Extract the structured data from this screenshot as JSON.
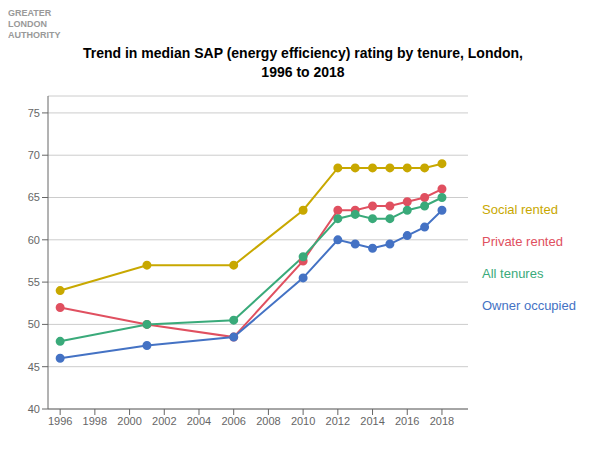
{
  "chart_data": {
    "type": "line",
    "title": "Trend in median SAP (energy efficiency) rating by tenure, London,\n1996 to 2018",
    "annotations": [
      "GREATER",
      "LONDON",
      "AUTHORITY"
    ],
    "x": [
      1996,
      2001,
      2006,
      2010,
      2012,
      2013,
      2014,
      2015,
      2016,
      2017,
      2018
    ],
    "series": [
      {
        "name": "Social rented",
        "color": "#c8a800",
        "values": [
          54.0,
          57.0,
          57.0,
          63.5,
          68.5,
          68.5,
          68.5,
          68.5,
          68.5,
          68.5,
          69.0
        ]
      },
      {
        "name": "Private rented",
        "color": "#e05060",
        "values": [
          52.0,
          50.0,
          48.5,
          57.5,
          63.5,
          63.5,
          64.0,
          64.0,
          64.5,
          65.0,
          66.0
        ]
      },
      {
        "name": "All tenures",
        "color": "#3aaa7a",
        "values": [
          48.0,
          50.0,
          50.5,
          58.0,
          62.5,
          63.0,
          62.5,
          62.5,
          63.5,
          64.0,
          65.0
        ]
      },
      {
        "name": "Owner occupied",
        "color": "#4472c4",
        "values": [
          46.0,
          47.5,
          48.5,
          55.5,
          60.0,
          59.5,
          59.0,
          59.5,
          60.5,
          61.5,
          63.5
        ]
      }
    ],
    "xlim": [
      1995.3,
      2019.5
    ],
    "xticks": [
      1996,
      1998,
      2000,
      2002,
      2004,
      2006,
      2008,
      2010,
      2012,
      2014,
      2016,
      2018
    ],
    "ylim": [
      40,
      77
    ],
    "yticks": [
      40,
      45,
      50,
      55,
      60,
      65,
      70,
      75
    ],
    "grid": true,
    "legend": "right",
    "marker": "circle"
  }
}
